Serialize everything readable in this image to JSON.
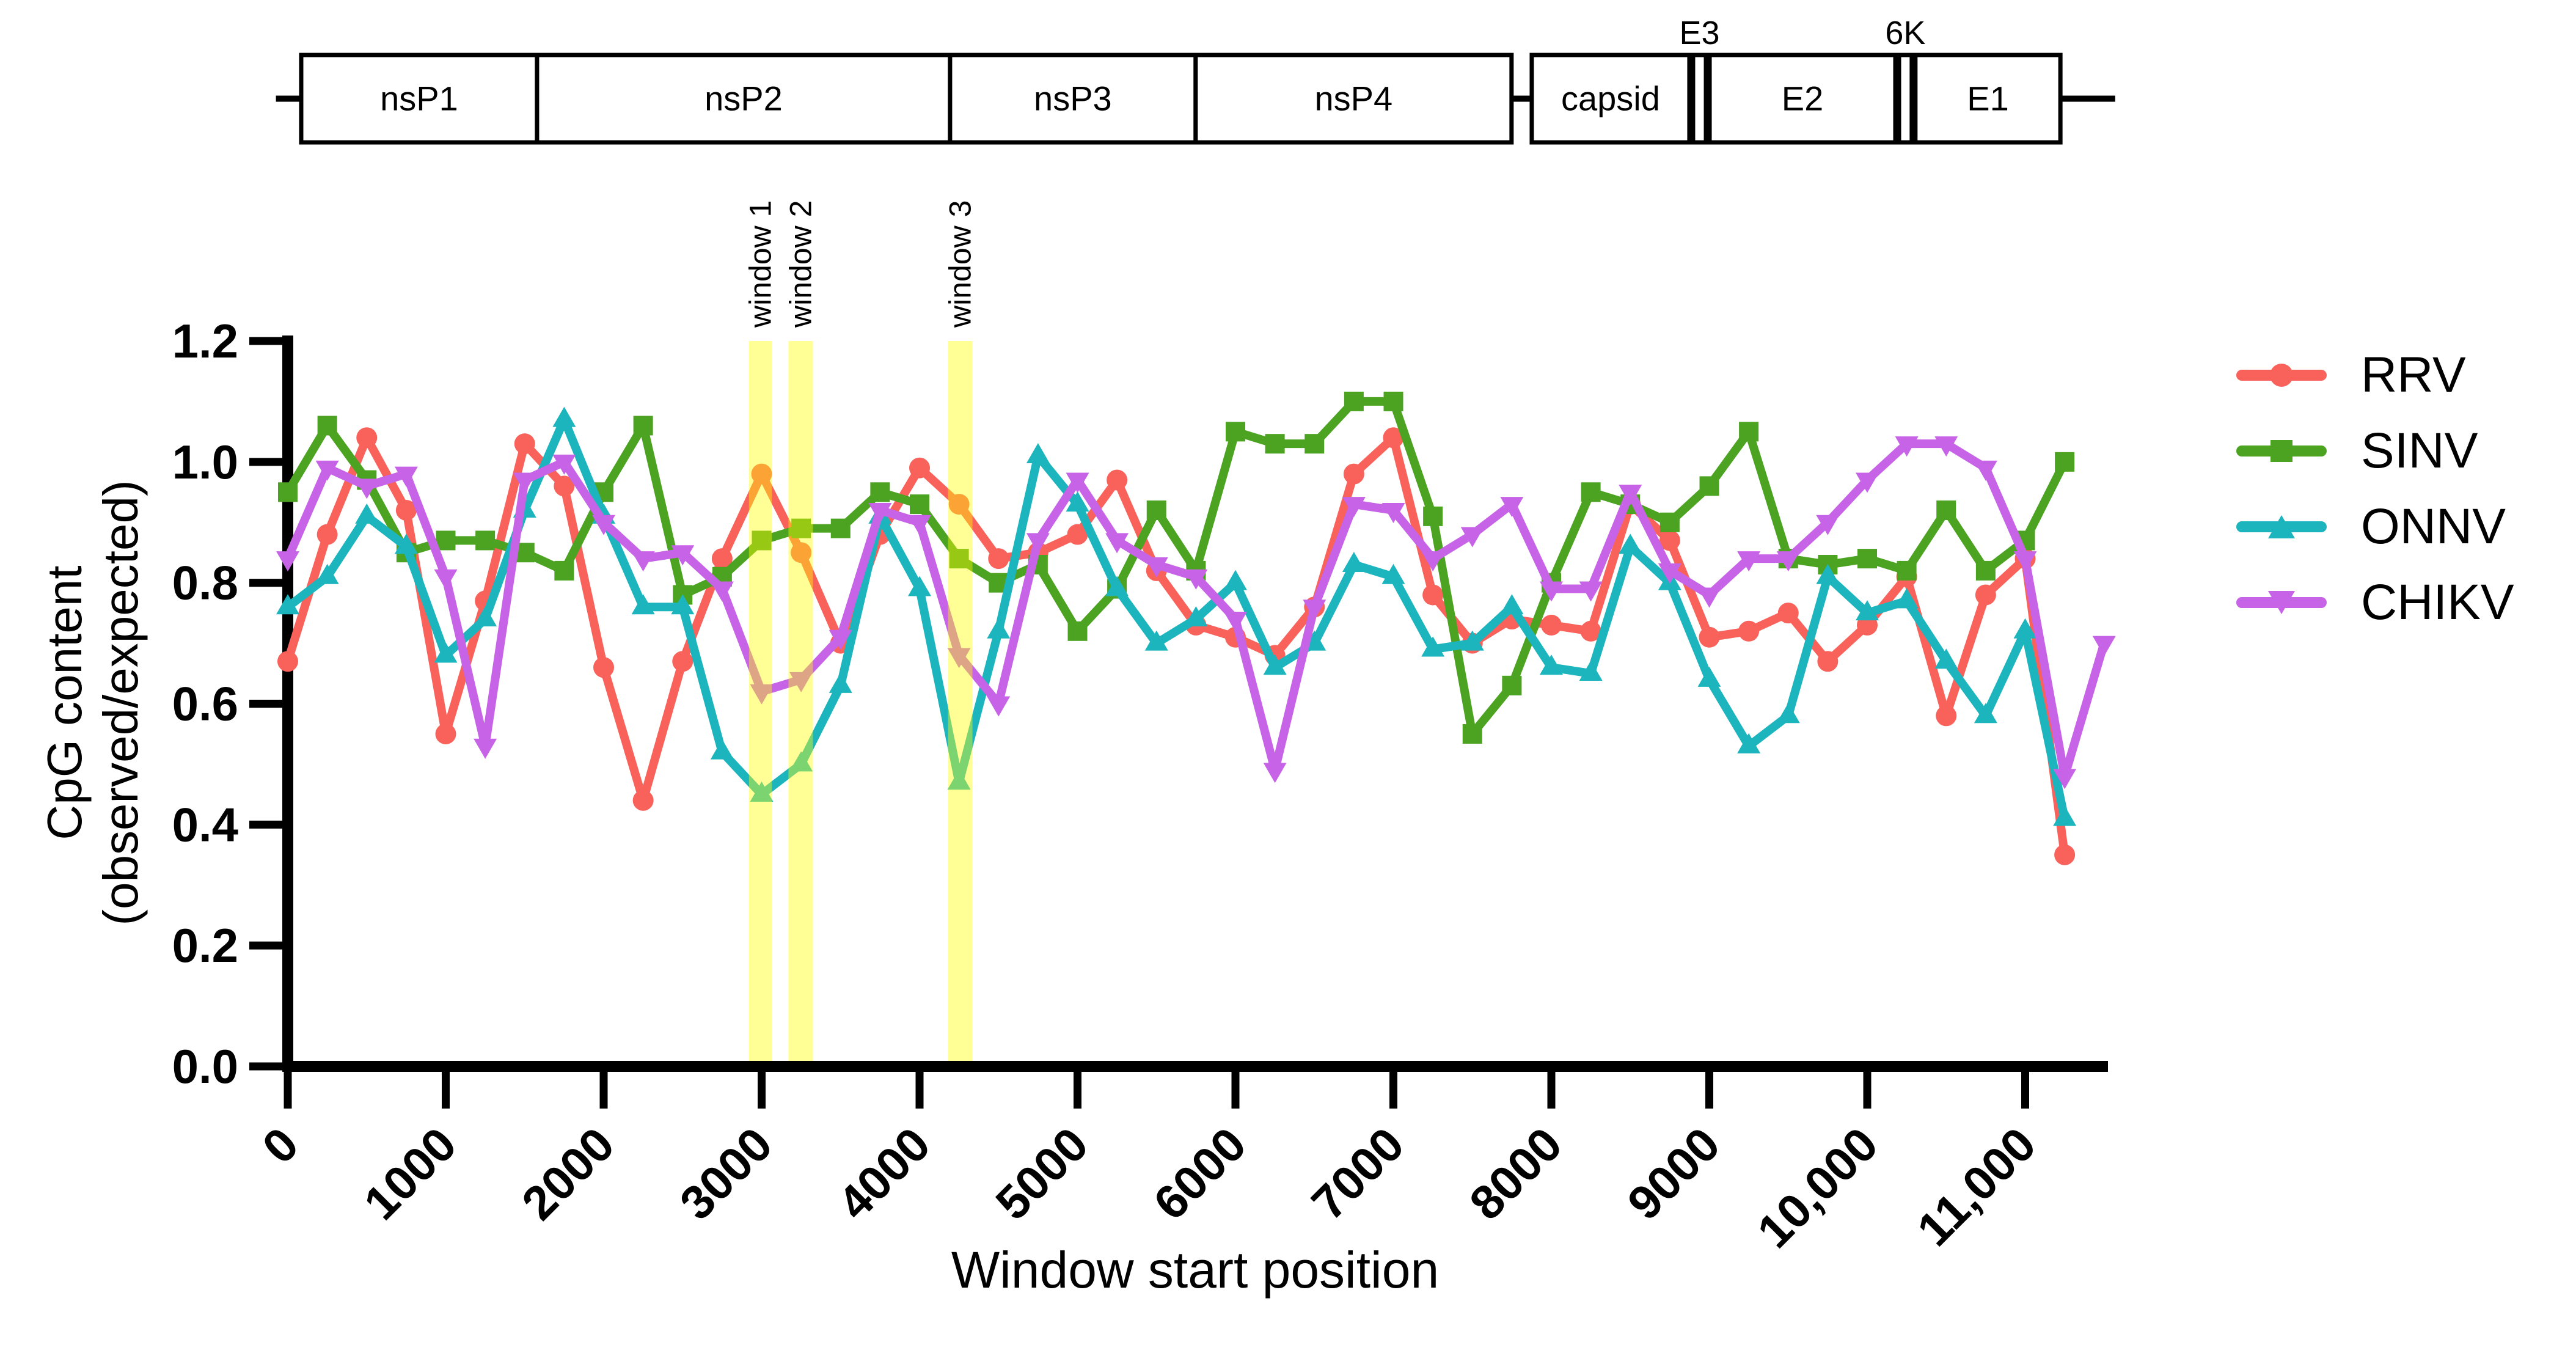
{
  "figure": {
    "background_color": "#ffffff",
    "highlight_color": "#FFFF00",
    "axis_color": "#000000",
    "genome_map": {
      "segments": [
        {
          "label": "nsP1",
          "from": 85,
          "to": 1578
        },
        {
          "label": "nsP2",
          "from": 1578,
          "to": 4193
        },
        {
          "label": "nsP3",
          "from": 4193,
          "to": 5748
        },
        {
          "label": "nsP4",
          "from": 5748,
          "to": 7748
        },
        {
          "label": "capsid",
          "from": 7876,
          "to": 8874
        },
        {
          "label": "E3",
          "from": 8874,
          "to": 9002,
          "narrow": true,
          "callout": true
        },
        {
          "label": "E2",
          "from": 9002,
          "to": 10178
        },
        {
          "label": "6K",
          "from": 10178,
          "to": 10305,
          "narrow": true,
          "callout": true
        },
        {
          "label": "E1",
          "from": 10305,
          "to": 11223
        }
      ],
      "connectors": [
        [
          -75,
          85
        ],
        [
          7748,
          7876
        ],
        [
          11223,
          11570
        ]
      ]
    },
    "highlight_windows": [
      {
        "label": "window 1",
        "from": 2920,
        "to": 3065
      },
      {
        "label": "window 2",
        "from": 3170,
        "to": 3325
      },
      {
        "label": "window 3",
        "from": 4180,
        "to": 4335
      }
    ]
  },
  "chart_data": {
    "type": "line",
    "title": "",
    "xlabel": "Window start position",
    "ylabel_lines": [
      "CpG content",
      "(observed/expected)"
    ],
    "xlim": [
      0,
      11570
    ],
    "ylim": [
      0.0,
      1.2
    ],
    "x_ticks": [
      {
        "value": 0,
        "label": "0"
      },
      {
        "value": 1000,
        "label": "1000"
      },
      {
        "value": 2000,
        "label": "2000"
      },
      {
        "value": 3000,
        "label": "3000"
      },
      {
        "value": 4000,
        "label": "4000"
      },
      {
        "value": 5000,
        "label": "5000"
      },
      {
        "value": 6000,
        "label": "6000"
      },
      {
        "value": 7000,
        "label": "7000"
      },
      {
        "value": 8000,
        "label": "8000"
      },
      {
        "value": 9000,
        "label": "9000"
      },
      {
        "value": 10000,
        "label": "10,000"
      },
      {
        "value": 11000,
        "label": "11,000"
      }
    ],
    "y_ticks": [
      {
        "value": 0.0,
        "label": "0.0"
      },
      {
        "value": 0.2,
        "label": "0.2"
      },
      {
        "value": 0.4,
        "label": "0.4"
      },
      {
        "value": 0.6,
        "label": "0.6"
      },
      {
        "value": 0.8,
        "label": "0.8"
      },
      {
        "value": 1.0,
        "label": "1.0"
      },
      {
        "value": 1.2,
        "label": "1.2"
      }
    ],
    "x_start": 0,
    "x_step": 250,
    "grid": false,
    "legend_position": "right",
    "series": [
      {
        "name": "RRV",
        "color": "#F9625B",
        "marker": "circle",
        "values": [
          0.67,
          0.88,
          1.04,
          0.92,
          0.55,
          0.77,
          1.03,
          0.96,
          0.66,
          0.44,
          0.67,
          0.84,
          0.98,
          0.85,
          0.7,
          0.88,
          0.99,
          0.93,
          0.84,
          0.85,
          0.88,
          0.97,
          0.82,
          0.73,
          0.71,
          0.68,
          0.76,
          0.98,
          1.04,
          0.78,
          0.7,
          0.74,
          0.73,
          0.72,
          0.93,
          0.87,
          0.71,
          0.72,
          0.75,
          0.67,
          0.73,
          0.81,
          0.58,
          0.78,
          0.84,
          0.35
        ]
      },
      {
        "name": "SINV",
        "color": "#4CA322",
        "marker": "square",
        "values": [
          0.95,
          1.06,
          0.97,
          0.85,
          0.87,
          0.87,
          0.85,
          0.82,
          0.95,
          1.06,
          0.78,
          0.81,
          0.87,
          0.89,
          0.89,
          0.95,
          0.93,
          0.84,
          0.8,
          0.83,
          0.72,
          0.79,
          0.92,
          0.82,
          1.05,
          1.03,
          1.03,
          1.1,
          1.1,
          0.91,
          0.55,
          0.63,
          0.8,
          0.95,
          0.93,
          0.9,
          0.96,
          1.05,
          0.84,
          0.83,
          0.84,
          0.82,
          0.92,
          0.82,
          0.87,
          1.0
        ]
      },
      {
        "name": "ONNV",
        "color": "#1CB5BD",
        "marker": "triangle-up",
        "values": [
          0.76,
          0.81,
          0.91,
          0.86,
          0.68,
          0.74,
          0.92,
          1.07,
          0.91,
          0.76,
          0.76,
          0.52,
          0.45,
          0.5,
          0.63,
          0.91,
          0.79,
          0.47,
          0.72,
          1.01,
          0.93,
          0.79,
          0.7,
          0.74,
          0.8,
          0.66,
          0.7,
          0.83,
          0.81,
          0.69,
          0.7,
          0.76,
          0.66,
          0.65,
          0.86,
          0.8,
          0.64,
          0.53,
          0.58,
          0.81,
          0.75,
          0.77,
          0.67,
          0.58,
          0.72,
          0.41
        ]
      },
      {
        "name": "CHIKV",
        "color": "#C763E6",
        "marker": "triangle-down",
        "values": [
          0.84,
          0.99,
          0.96,
          0.98,
          0.81,
          0.53,
          0.97,
          1.0,
          0.9,
          0.84,
          0.85,
          0.79,
          0.62,
          0.64,
          0.71,
          0.92,
          0.9,
          0.68,
          0.6,
          0.87,
          0.97,
          0.87,
          0.83,
          0.81,
          0.74,
          0.49,
          0.76,
          0.93,
          0.92,
          0.84,
          0.88,
          0.93,
          0.79,
          0.79,
          0.95,
          0.82,
          0.78,
          0.84,
          0.84,
          0.9,
          0.97,
          1.03,
          1.03,
          0.99,
          0.84,
          0.48,
          0.7
        ]
      }
    ]
  }
}
